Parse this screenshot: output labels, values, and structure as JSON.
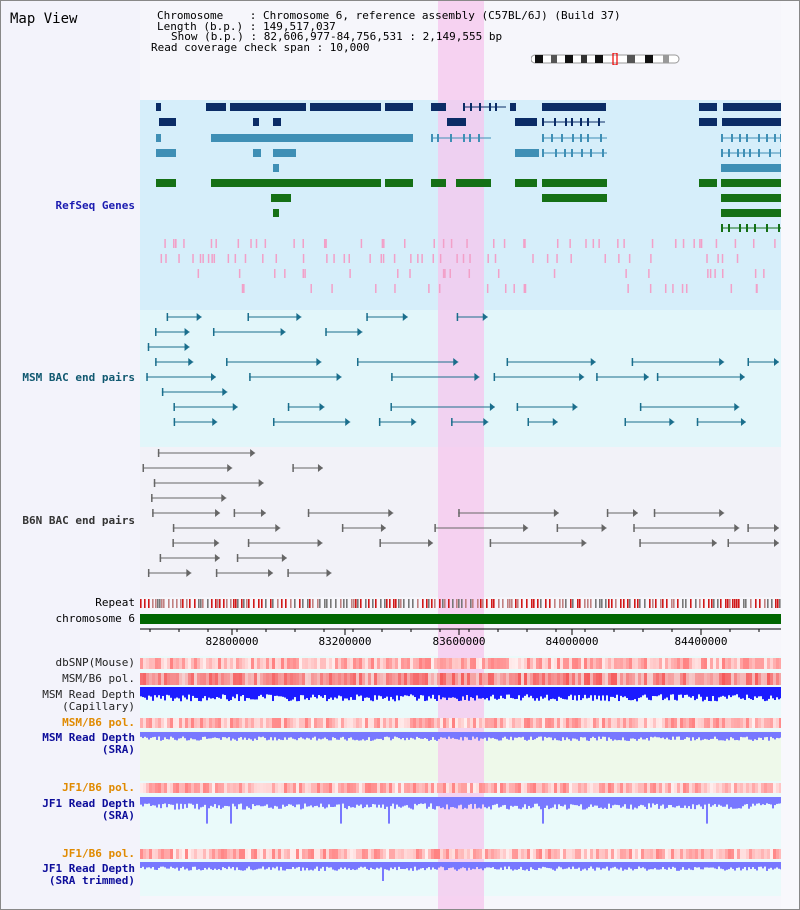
{
  "window": {
    "title": "Map View"
  },
  "header": {
    "chromosome_line": "Chromosome    : Chromosome 6, reference assembly (C57BL/6J) (Build 37)",
    "length_line": "Length (b.p.) : 149,517,037",
    "show_line": "Show (b.p.) : 82,606,977-84,756,531 : 2,149,555 bp",
    "coverage_line": "Read coverage check span : 10,000"
  },
  "tracks": {
    "refseq": "RefSeq Genes",
    "msm_bac": "MSM BAC end pairs",
    "b6n_bac": "B6N BAC end pairs",
    "repeat": "Repeat",
    "chromosome": "chromosome 6",
    "dbsnp": "dbSNP(Mouse)",
    "msm_b6_pol_1": "MSM/B6 pol.",
    "msm_read_depth_cap_1": "MSM Read Depth",
    "msm_read_depth_cap_2": "(Capillary)",
    "msm_b6_pol_2": "MSM/B6 pol.",
    "msm_read_depth_sra_1": "MSM Read Depth",
    "msm_read_depth_sra_2": "(SRA)",
    "jf1_b6_pol_1": "JF1/B6 pol.",
    "jf1_read_depth_sra_1": "JF1 Read Depth",
    "jf1_read_depth_sra_2": "(SRA)",
    "jf1_b6_pol_2": "JF1/B6 pol.",
    "jf1_read_depth_trim_1": "JF1 Read Depth",
    "jf1_read_depth_trim_2": "(SRA trimmed)"
  },
  "axis": {
    "ticks": [
      "82800000",
      "83200000",
      "83600000",
      "84000000",
      "84400000"
    ]
  },
  "colors": {
    "refseq_navy": "#0b2c66",
    "refseq_steel": "#3f8fb5",
    "refseq_green": "#157015",
    "msm_bac": "#1a6e8c",
    "b6n_bac": "#666666",
    "highlight": "#f5c6ee",
    "chromosome": "#006600",
    "depth_blue": "#1b1bff",
    "depth_light": "#7878ff"
  }
}
